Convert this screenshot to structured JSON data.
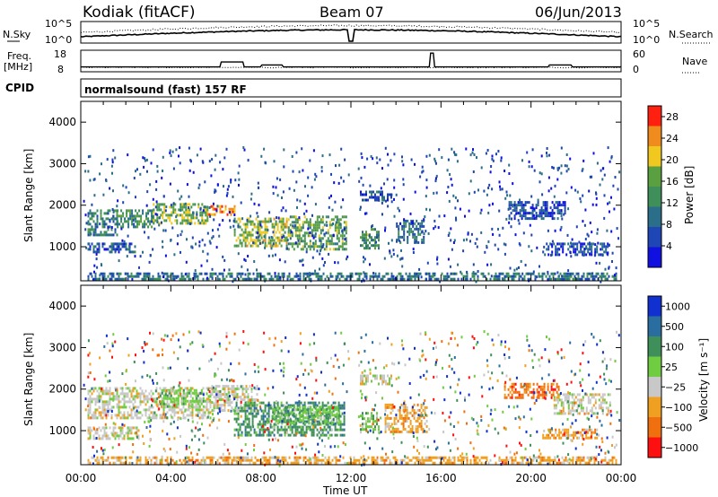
{
  "header": {
    "station": "Kodiak (fitACF)",
    "beam": "Beam 07",
    "date": "06/Jun/2013"
  },
  "top_panels": {
    "nsky_label": "N.Sky",
    "nsky_ticks": [
      "10^5",
      "10^0"
    ],
    "nsearch_label": "N.Search",
    "nsearch_ticks": [
      "10^5",
      "10^0"
    ],
    "freq_label": "Freq.",
    "freq_unit": "[MHz]",
    "freq_ticks": [
      "18",
      "8"
    ],
    "nave_label": "Nave",
    "nave_ticks": [
      "60",
      "0"
    ],
    "cpid_label": "CPID",
    "cpid_text": "normalsound (fast) 157 RF"
  },
  "chart_data": [
    {
      "type": "heatmap",
      "panel": "power",
      "ylabel": "Slant Range [km]",
      "xlabel": "Time UT",
      "x_ticks": [
        "00:00",
        "04:00",
        "08:00",
        "12:00",
        "16:00",
        "20:00",
        "00:00"
      ],
      "xlim_hours": [
        0,
        24
      ],
      "y_ticks": [
        1000,
        2000,
        3000,
        4000
      ],
      "ylim": [
        180,
        4500
      ],
      "colorbar_label": "Power [dB]",
      "colorbar_ticks": [
        "4",
        "8",
        "12",
        "16",
        "20",
        "24",
        "28"
      ],
      "colorbar_range": [
        0,
        30
      ],
      "colorbar_colors": [
        "#1010e0",
        "#1e46b4",
        "#2a6e8a",
        "#3f8f5a",
        "#5aa040",
        "#f0c820",
        "#f08c1e",
        "#ff2010"
      ],
      "regions": [
        {
          "t0": 0.3,
          "t1": 1.6,
          "r0": 1300,
          "r1": 1900,
          "v": 11
        },
        {
          "t0": 1.6,
          "t1": 3.2,
          "r0": 1450,
          "r1": 1900,
          "v": 13
        },
        {
          "t0": 3.2,
          "t1": 5.6,
          "r0": 1550,
          "r1": 2050,
          "v": 17
        },
        {
          "t0": 5.6,
          "t1": 6.8,
          "r0": 1750,
          "r1": 2000,
          "v": 24
        },
        {
          "t0": 6.8,
          "t1": 9.2,
          "r0": 1050,
          "r1": 1700,
          "v": 18
        },
        {
          "t0": 9.2,
          "t1": 11.8,
          "r0": 950,
          "r1": 1750,
          "v": 15
        },
        {
          "t0": 0.3,
          "t1": 2.4,
          "r0": 850,
          "r1": 1100,
          "v": 7
        },
        {
          "t0": 12.4,
          "t1": 13.8,
          "r0": 2100,
          "r1": 2350,
          "v": 7
        },
        {
          "t0": 12.4,
          "t1": 13.2,
          "r0": 950,
          "r1": 1450,
          "v": 14
        },
        {
          "t0": 14.0,
          "t1": 15.2,
          "r0": 1100,
          "r1": 1650,
          "v": 9
        },
        {
          "t0": 19.0,
          "t1": 21.5,
          "r0": 1700,
          "r1": 2100,
          "v": 6
        },
        {
          "t0": 20.5,
          "t1": 23.4,
          "r0": 800,
          "r1": 1100,
          "v": 6
        },
        {
          "t0": 0.3,
          "t1": 23.8,
          "r0": 200,
          "r1": 380,
          "v": 10
        }
      ]
    },
    {
      "type": "heatmap",
      "panel": "velocity",
      "ylabel": "Slant Range [km]",
      "xlabel": "Time UT",
      "x_ticks": [
        "00:00",
        "04:00",
        "08:00",
        "12:00",
        "16:00",
        "20:00",
        "00:00"
      ],
      "xlim_hours": [
        0,
        24
      ],
      "y_ticks": [
        1000,
        2000,
        3000,
        4000
      ],
      "ylim": [
        180,
        4500
      ],
      "colorbar_label": "Velocity [m s⁻¹]",
      "colorbar_ticks": [
        "1000",
        "500",
        "100",
        "25",
        "−25",
        "−100",
        "−500",
        "−1000"
      ],
      "colorbar_colors": [
        "#1030d0",
        "#2a6ea0",
        "#3f8f5a",
        "#70cc40",
        "#c8c8c8",
        "#f0a020",
        "#f07010",
        "#ff1010"
      ],
      "regions": [
        {
          "t0": 0.3,
          "t1": 5.8,
          "r0": 1300,
          "r1": 2050,
          "cls": 4
        },
        {
          "t0": 3.5,
          "t1": 5.5,
          "r0": 1600,
          "r1": 2000,
          "cls": 3
        },
        {
          "t0": 5.8,
          "t1": 7.8,
          "r0": 1500,
          "r1": 2100,
          "cls": 4
        },
        {
          "t0": 6.8,
          "t1": 11.7,
          "r0": 900,
          "r1": 1700,
          "cls": 2
        },
        {
          "t0": 8.5,
          "t1": 11.5,
          "r0": 1200,
          "r1": 1600,
          "cls": 3
        },
        {
          "t0": 0.3,
          "t1": 2.6,
          "r0": 800,
          "r1": 1100,
          "cls": 4
        },
        {
          "t0": 12.4,
          "t1": 13.8,
          "r0": 2100,
          "r1": 2350,
          "cls": 4
        },
        {
          "t0": 12.4,
          "t1": 13.2,
          "r0": 950,
          "r1": 1450,
          "cls": 3
        },
        {
          "t0": 13.5,
          "t1": 15.4,
          "r0": 1000,
          "r1": 1650,
          "cls": 5
        },
        {
          "t0": 18.8,
          "t1": 21.2,
          "r0": 1800,
          "r1": 2150,
          "cls": 6
        },
        {
          "t0": 21.0,
          "t1": 23.5,
          "r0": 1400,
          "r1": 1900,
          "cls": 4
        },
        {
          "t0": 20.5,
          "t1": 23.0,
          "r0": 800,
          "r1": 1050,
          "cls": 5
        },
        {
          "t0": 0.3,
          "t1": 23.8,
          "r0": 200,
          "r1": 380,
          "cls": 5
        }
      ]
    }
  ]
}
